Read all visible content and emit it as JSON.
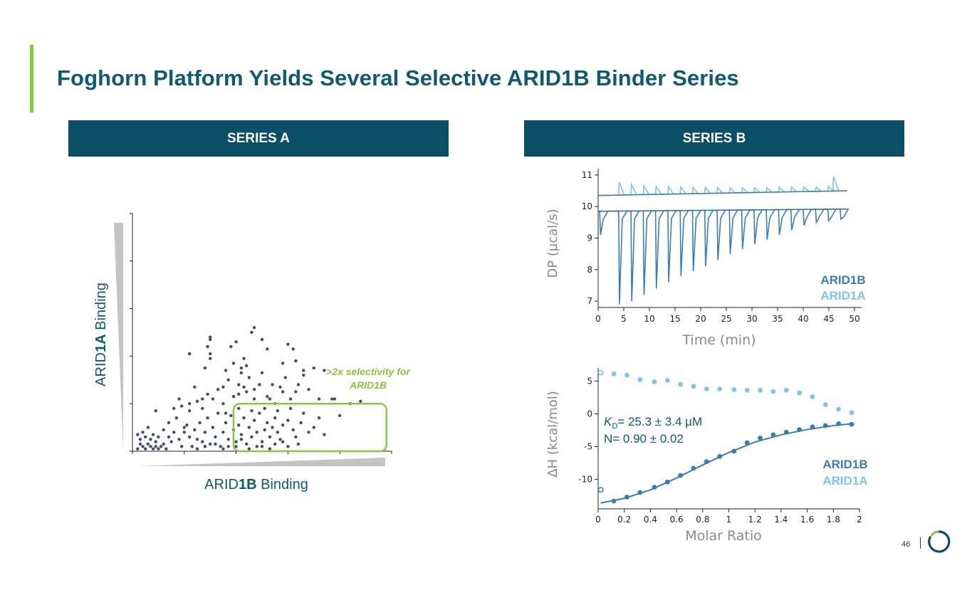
{
  "title": "Foghorn Platform Yields Several Selective ARID1B Binder Series",
  "series_a": {
    "header": "SERIES A"
  },
  "series_b": {
    "header": "SERIES B"
  },
  "colors": {
    "accent": "#8cc63f",
    "title": "#0e5a6e",
    "header_bg": "#0b4e67",
    "dots": "#3f4e6e",
    "arid1b": "#3a7db5",
    "arid1a": "#7cc6e8",
    "wedge": "#c4c4c4"
  },
  "page_number": "46",
  "chart_data": [
    {
      "type": "scatter",
      "xlabel": {
        "prefix": "ARID",
        "bold": "1B",
        "suffix": " Binding"
      },
      "ylabel": {
        "prefix": "ARID",
        "bold": "1A",
        "suffix": " Binding"
      },
      "xlim": [
        0,
        1
      ],
      "ylim": [
        0,
        1
      ],
      "annotation": {
        "line1": ">2x selectivity for",
        "line2": "ARID1B"
      },
      "selection_box": {
        "x": [
          0.39,
          0.98
        ],
        "y": [
          0.0,
          0.2
        ]
      },
      "points": [
        [
          0.02,
          0.01
        ],
        [
          0.03,
          0.03
        ],
        [
          0.04,
          0.02
        ],
        [
          0.05,
          0.01
        ],
        [
          0.06,
          0.03
        ],
        [
          0.07,
          0.02
        ],
        [
          0.08,
          0.01
        ],
        [
          0.09,
          0.02
        ],
        [
          0.1,
          0.01
        ],
        [
          0.11,
          0.02
        ],
        [
          0.03,
          0.05
        ],
        [
          0.05,
          0.06
        ],
        [
          0.07,
          0.05
        ],
        [
          0.09,
          0.04
        ],
        [
          0.12,
          0.03
        ],
        [
          0.13,
          0.01
        ],
        [
          0.04,
          0.08
        ],
        [
          0.06,
          0.1
        ],
        [
          0.02,
          0.07
        ],
        [
          0.08,
          0.07
        ],
        [
          0.15,
          0.04
        ],
        [
          0.16,
          0.08
        ],
        [
          0.18,
          0.05
        ],
        [
          0.19,
          0.02
        ],
        [
          0.2,
          0.08
        ],
        [
          0.21,
          0.11
        ],
        [
          0.22,
          0.06
        ],
        [
          0.23,
          0.02
        ],
        [
          0.24,
          0.09
        ],
        [
          0.25,
          0.05
        ],
        [
          0.26,
          0.12
        ],
        [
          0.27,
          0.04
        ],
        [
          0.28,
          0.08
        ],
        [
          0.29,
          0.14
        ],
        [
          0.3,
          0.03
        ],
        [
          0.31,
          0.1
        ],
        [
          0.32,
          0.06
        ],
        [
          0.33,
          0.16
        ],
        [
          0.34,
          0.02
        ],
        [
          0.35,
          0.08
        ],
        [
          0.36,
          0.12
        ],
        [
          0.37,
          0.05
        ],
        [
          0.38,
          0.15
        ],
        [
          0.39,
          0.09
        ],
        [
          0.4,
          0.04
        ],
        [
          0.41,
          0.11
        ],
        [
          0.42,
          0.07
        ],
        [
          0.43,
          0.14
        ],
        [
          0.44,
          0.03
        ],
        [
          0.45,
          0.1
        ],
        [
          0.46,
          0.06
        ],
        [
          0.47,
          0.13
        ],
        [
          0.48,
          0.08
        ],
        [
          0.49,
          0.16
        ],
        [
          0.5,
          0.04
        ],
        [
          0.51,
          0.09
        ],
        [
          0.52,
          0.12
        ],
        [
          0.53,
          0.06
        ],
        [
          0.54,
          0.1
        ],
        [
          0.55,
          0.14
        ],
        [
          0.56,
          0.08
        ],
        [
          0.57,
          0.05
        ],
        [
          0.58,
          0.11
        ],
        [
          0.6,
          0.13
        ],
        [
          0.62,
          0.09
        ],
        [
          0.63,
          0.06
        ],
        [
          0.65,
          0.12
        ],
        [
          0.66,
          0.16
        ],
        [
          0.68,
          0.08
        ],
        [
          0.7,
          0.1
        ],
        [
          0.72,
          0.14
        ],
        [
          0.74,
          0.07
        ],
        [
          0.17,
          0.14
        ],
        [
          0.19,
          0.19
        ],
        [
          0.22,
          0.17
        ],
        [
          0.25,
          0.21
        ],
        [
          0.27,
          0.18
        ],
        [
          0.29,
          0.24
        ],
        [
          0.31,
          0.22
        ],
        [
          0.33,
          0.26
        ],
        [
          0.35,
          0.2
        ],
        [
          0.37,
          0.3
        ],
        [
          0.39,
          0.23
        ],
        [
          0.41,
          0.28
        ],
        [
          0.42,
          0.33
        ],
        [
          0.44,
          0.25
        ],
        [
          0.45,
          0.31
        ],
        [
          0.47,
          0.22
        ],
        [
          0.49,
          0.28
        ],
        [
          0.52,
          0.23
        ],
        [
          0.55,
          0.2
        ],
        [
          0.58,
          0.25
        ],
        [
          0.61,
          0.22
        ],
        [
          0.64,
          0.28
        ],
        [
          0.66,
          0.32
        ],
        [
          0.68,
          0.26
        ],
        [
          0.7,
          0.35
        ],
        [
          0.72,
          0.22
        ],
        [
          0.78,
          0.22
        ],
        [
          0.84,
          0.2
        ],
        [
          0.88,
          0.21
        ],
        [
          0.22,
          0.2
        ],
        [
          0.18,
          0.22
        ],
        [
          0.28,
          0.35
        ],
        [
          0.3,
          0.41
        ],
        [
          0.38,
          0.44
        ],
        [
          0.42,
          0.35
        ],
        [
          0.43,
          0.39
        ],
        [
          0.24,
          0.27
        ],
        [
          0.2,
          0.1
        ],
        [
          0.22,
          0.41
        ],
        [
          0.29,
          0.44
        ],
        [
          0.3,
          0.39
        ],
        [
          0.36,
          0.34
        ],
        [
          0.5,
          0.33
        ],
        [
          0.53,
          0.22
        ],
        [
          0.58,
          0.37
        ],
        [
          0.63,
          0.38
        ],
        [
          0.66,
          0.34
        ],
        [
          0.74,
          0.34
        ],
        [
          0.77,
          0.22
        ],
        [
          0.8,
          0.15
        ],
        [
          0.3,
          0.47
        ],
        [
          0.4,
          0.46
        ],
        [
          0.46,
          0.5
        ],
        [
          0.47,
          0.52
        ],
        [
          0.5,
          0.47
        ],
        [
          0.52,
          0.43
        ],
        [
          0.6,
          0.45
        ],
        [
          0.62,
          0.43
        ],
        [
          0.22,
          0.41
        ],
        [
          0.3,
          0.48
        ],
        [
          0.39,
          0.37
        ],
        [
          0.44,
          0.36
        ],
        [
          0.36,
          0.16
        ],
        [
          0.41,
          0.18
        ],
        [
          0.46,
          0.17
        ],
        [
          0.51,
          0.18
        ],
        [
          0.56,
          0.17
        ],
        [
          0.61,
          0.18
        ],
        [
          0.4,
          0.02
        ],
        [
          0.45,
          0.01
        ],
        [
          0.5,
          0.02
        ],
        [
          0.55,
          0.03
        ],
        [
          0.6,
          0.02
        ],
        [
          0.35,
          0.01
        ],
        [
          0.32,
          0.03
        ],
        [
          0.28,
          0.02
        ],
        [
          0.25,
          0.01
        ],
        [
          0.42,
          0.05
        ],
        [
          0.48,
          0.02
        ],
        [
          0.53,
          0.01
        ],
        [
          0.58,
          0.04
        ],
        [
          0.64,
          0.03
        ],
        [
          0.37,
          0.02
        ],
        [
          0.14,
          0.06
        ],
        [
          0.12,
          0.09
        ],
        [
          0.1,
          0.06
        ],
        [
          0.14,
          0.12
        ],
        [
          0.09,
          0.17
        ],
        [
          0.16,
          0.18
        ],
        [
          0.27,
          0.22
        ],
        [
          0.35,
          0.27
        ],
        [
          0.41,
          0.24
        ],
        [
          0.43,
          0.27
        ],
        [
          0.47,
          0.26
        ],
        [
          0.54,
          0.28
        ],
        [
          0.57,
          0.27
        ],
        [
          0.59,
          0.31
        ],
        [
          0.63,
          0.25
        ]
      ]
    },
    {
      "type": "line",
      "title": "",
      "xlabel": "Time (min)",
      "ylabel": "DP (µcal/s)",
      "xlim": [
        0,
        50
      ],
      "ylim": [
        6.8,
        11.2
      ],
      "x_ticks": [
        0,
        5,
        10,
        15,
        20,
        25,
        30,
        35,
        40,
        45,
        50
      ],
      "y_ticks": [
        7,
        8,
        9,
        10,
        11
      ],
      "legend": [
        "ARID1B",
        "ARID1A"
      ],
      "series": [
        {
          "name": "ARID1B",
          "baseline": [
            [
              0,
              9.85
            ],
            [
              48.5,
              9.92
            ]
          ],
          "injection_times": [
            0.3,
            4,
            6.4,
            8.8,
            11.2,
            13.6,
            16,
            18.4,
            20.8,
            23.2,
            25.6,
            28,
            30.4,
            32.8,
            35.2,
            37.6,
            40,
            42.4,
            44.8,
            47.2
          ],
          "peak_minima": [
            9.1,
            6.9,
            7.0,
            7.2,
            7.4,
            7.6,
            7.8,
            7.95,
            8.1,
            8.3,
            8.5,
            8.65,
            8.8,
            8.95,
            9.1,
            9.25,
            9.4,
            9.5,
            9.55,
            9.6
          ]
        },
        {
          "name": "ARID1A",
          "baseline": [
            [
              0,
              10.35
            ],
            [
              48.5,
              10.5
            ]
          ],
          "injection_times": [
            4,
            6.4,
            8.8,
            11.2,
            13.6,
            16,
            18.4,
            20.8,
            23.2,
            25.6,
            28,
            30.4,
            32.8,
            35.2,
            37.6,
            40,
            42.4,
            44.8,
            45.8
          ],
          "peak_maxima": [
            10.78,
            10.7,
            10.66,
            10.64,
            10.62,
            10.62,
            10.6,
            10.6,
            10.6,
            10.6,
            10.6,
            10.6,
            10.6,
            10.62,
            10.62,
            10.62,
            10.62,
            10.64,
            10.95
          ]
        }
      ]
    },
    {
      "type": "scatter",
      "title": "",
      "xlabel": "Molar Ratio",
      "ylabel": "ΔH (kcal/mol)",
      "xlim": [
        0,
        2
      ],
      "ylim": [
        -14.5,
        7
      ],
      "x_ticks": [
        0,
        0.2,
        0.4,
        0.6,
        0.8,
        1,
        1.2,
        1.4,
        1.6,
        1.8,
        2
      ],
      "y_ticks": [
        5,
        0,
        -5,
        -10
      ],
      "legend": [
        "ARID1B",
        "ARID1A"
      ],
      "annotation": {
        "kd_symbol": "K",
        "kd_sub": "D",
        "kd_text": "= 25.3 ± 3.4 µM",
        "n_text": "N= 0.90 ± 0.02"
      },
      "series": [
        {
          "name": "ARID1B",
          "outlier": [
            0.02,
            -11.6
          ],
          "x": [
            0.12,
            0.22,
            0.32,
            0.43,
            0.53,
            0.63,
            0.73,
            0.83,
            0.93,
            1.04,
            1.14,
            1.24,
            1.34,
            1.44,
            1.54,
            1.64,
            1.74,
            1.84,
            1.94
          ],
          "y": [
            -13.3,
            -12.7,
            -12.0,
            -11.2,
            -10.4,
            -9.4,
            -8.3,
            -7.3,
            -6.5,
            -5.7,
            -4.4,
            -3.7,
            -3.2,
            -2.8,
            -2.4,
            -2.0,
            -1.8,
            -1.5,
            -1.6
          ],
          "fit": [
            [
              0.02,
              -13.6
            ],
            [
              0.2,
              -12.9
            ],
            [
              0.4,
              -11.6
            ],
            [
              0.6,
              -9.8
            ],
            [
              0.8,
              -7.8
            ],
            [
              1.0,
              -5.9
            ],
            [
              1.2,
              -4.3
            ],
            [
              1.4,
              -3.2
            ],
            [
              1.6,
              -2.4
            ],
            [
              1.8,
              -1.8
            ],
            [
              1.95,
              -1.5
            ]
          ]
        },
        {
          "name": "ARID1A",
          "x": [
            0.02,
            0.12,
            0.22,
            0.32,
            0.43,
            0.53,
            0.63,
            0.73,
            0.83,
            0.93,
            1.04,
            1.14,
            1.24,
            1.34,
            1.44,
            1.54,
            1.64,
            1.74,
            1.84,
            1.94
          ],
          "y": [
            6.3,
            6.1,
            5.9,
            5.2,
            4.9,
            5.1,
            4.5,
            4.2,
            3.8,
            3.8,
            3.7,
            3.6,
            3.6,
            3.4,
            3.6,
            3.2,
            2.6,
            1.4,
            0.7,
            0.2
          ]
        }
      ]
    }
  ]
}
